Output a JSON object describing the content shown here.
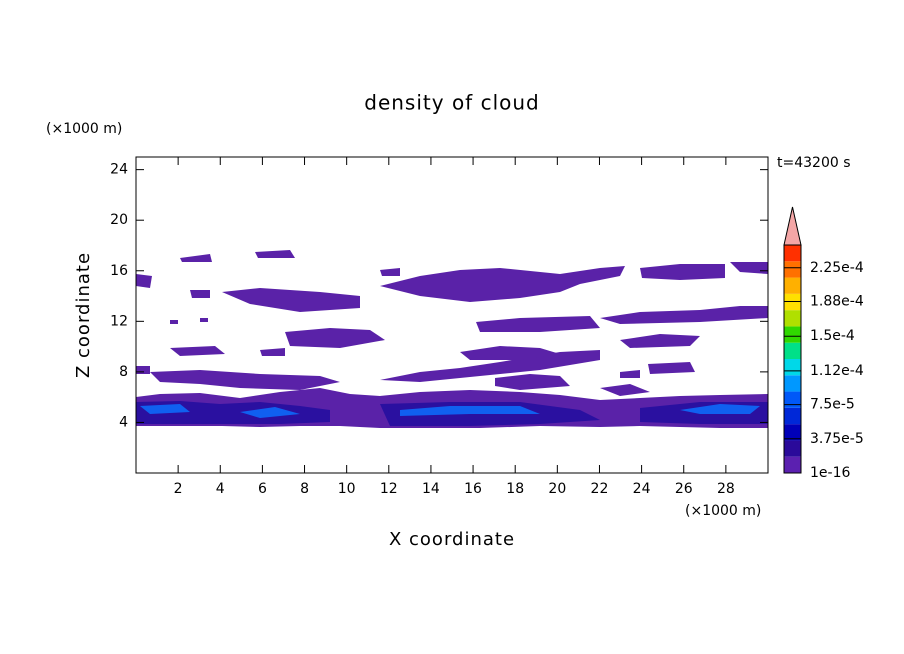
{
  "chart_data": {
    "type": "contour",
    "title": "density of cloud",
    "x_label": "X coordinate",
    "y_label": "Z coordinate",
    "x_unit": "(×1000 m)",
    "y_unit": "(×1000 m)",
    "annotation": "t=43200 s",
    "xlim": [
      0,
      30
    ],
    "ylim": [
      0,
      25
    ],
    "xticks": [
      2,
      4,
      6,
      8,
      10,
      12,
      14,
      16,
      18,
      20,
      22,
      24,
      26,
      28
    ],
    "yticks": [
      4,
      8,
      12,
      16,
      20,
      24
    ],
    "clim": [
      1e-16,
      0.00025
    ],
    "cticks": [
      {
        "value": 1e-16,
        "label": "1e-16"
      },
      {
        "value": 3.75e-05,
        "label": "3.75e-5"
      },
      {
        "value": 7.5e-05,
        "label": "7.5e-5"
      },
      {
        "value": 0.000112,
        "label": "1.12e-4"
      },
      {
        "value": 0.00015,
        "label": "1.5e-4"
      },
      {
        "value": 0.000188,
        "label": "1.88e-4"
      },
      {
        "value": 0.000225,
        "label": "2.25e-4"
      }
    ],
    "colors": [
      "#5b20b0",
      "#2a0a9a",
      "#0000b8",
      "#0028d8",
      "#0058f8",
      "#0098ff",
      "#00d8e8",
      "#00e088",
      "#30d800",
      "#b0e000",
      "#ffe000",
      "#ffb000",
      "#ff7000",
      "#ff3000"
    ],
    "over_color": "#f4a6a6"
  }
}
